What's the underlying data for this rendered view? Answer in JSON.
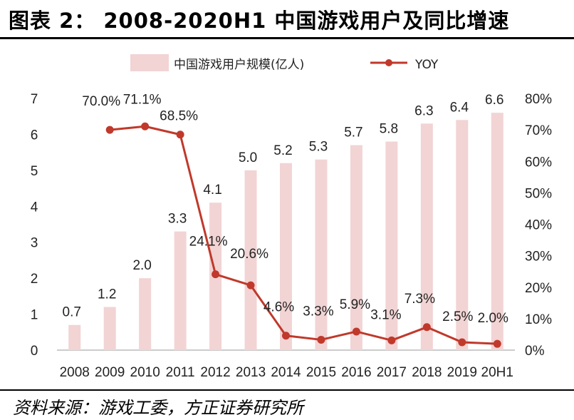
{
  "title": "图表 2： 2008-2020H1 中国游戏用户及同比增速",
  "source": "资料来源：游戏工委，方正证券研究所",
  "colors": {
    "bar": "#f2d4d4",
    "line": "#c0392b"
  },
  "chart_data": {
    "type": "bar+line",
    "categories": [
      "2008",
      "2009",
      "2010",
      "2011",
      "2012",
      "2013",
      "2014",
      "2015",
      "2016",
      "2017",
      "2018",
      "2019",
      "20H1"
    ],
    "series": [
      {
        "name": "中国游戏用户规模(亿人)",
        "type": "bar",
        "axis": "left",
        "values": [
          0.7,
          1.2,
          2.0,
          3.3,
          4.1,
          5.0,
          5.2,
          5.3,
          5.7,
          5.8,
          6.3,
          6.4,
          6.6
        ],
        "labels": [
          "0.7",
          "1.2",
          "2.0",
          "3.3",
          "4.1",
          "5.0",
          "5.2",
          "5.3",
          "5.7",
          "5.8",
          "6.3",
          "6.4",
          "6.6"
        ]
      },
      {
        "name": "YOY",
        "type": "line",
        "axis": "right",
        "values": [
          null,
          70.0,
          71.1,
          68.5,
          24.1,
          20.6,
          4.6,
          3.3,
          5.9,
          3.1,
          7.3,
          2.5,
          2.0
        ],
        "labels": [
          null,
          "70.0%",
          "71.1%",
          "68.5%",
          "24.1%",
          "20.6%",
          "4.6%",
          "3.3%",
          "5.9%",
          "3.1%",
          "7.3%",
          "2.5%",
          "2.0%"
        ]
      }
    ],
    "left_axis": {
      "range": [
        0,
        7
      ],
      "ticks": [
        "0",
        "1",
        "2",
        "3",
        "4",
        "5",
        "6",
        "7"
      ]
    },
    "right_axis": {
      "range": [
        0,
        80
      ],
      "ticks": [
        "0%",
        "10%",
        "20%",
        "30%",
        "40%",
        "50%",
        "60%",
        "70%",
        "80%"
      ]
    },
    "legend": {
      "position": "top",
      "items": [
        "中国游戏用户规模(亿人)",
        "YOY"
      ]
    }
  }
}
